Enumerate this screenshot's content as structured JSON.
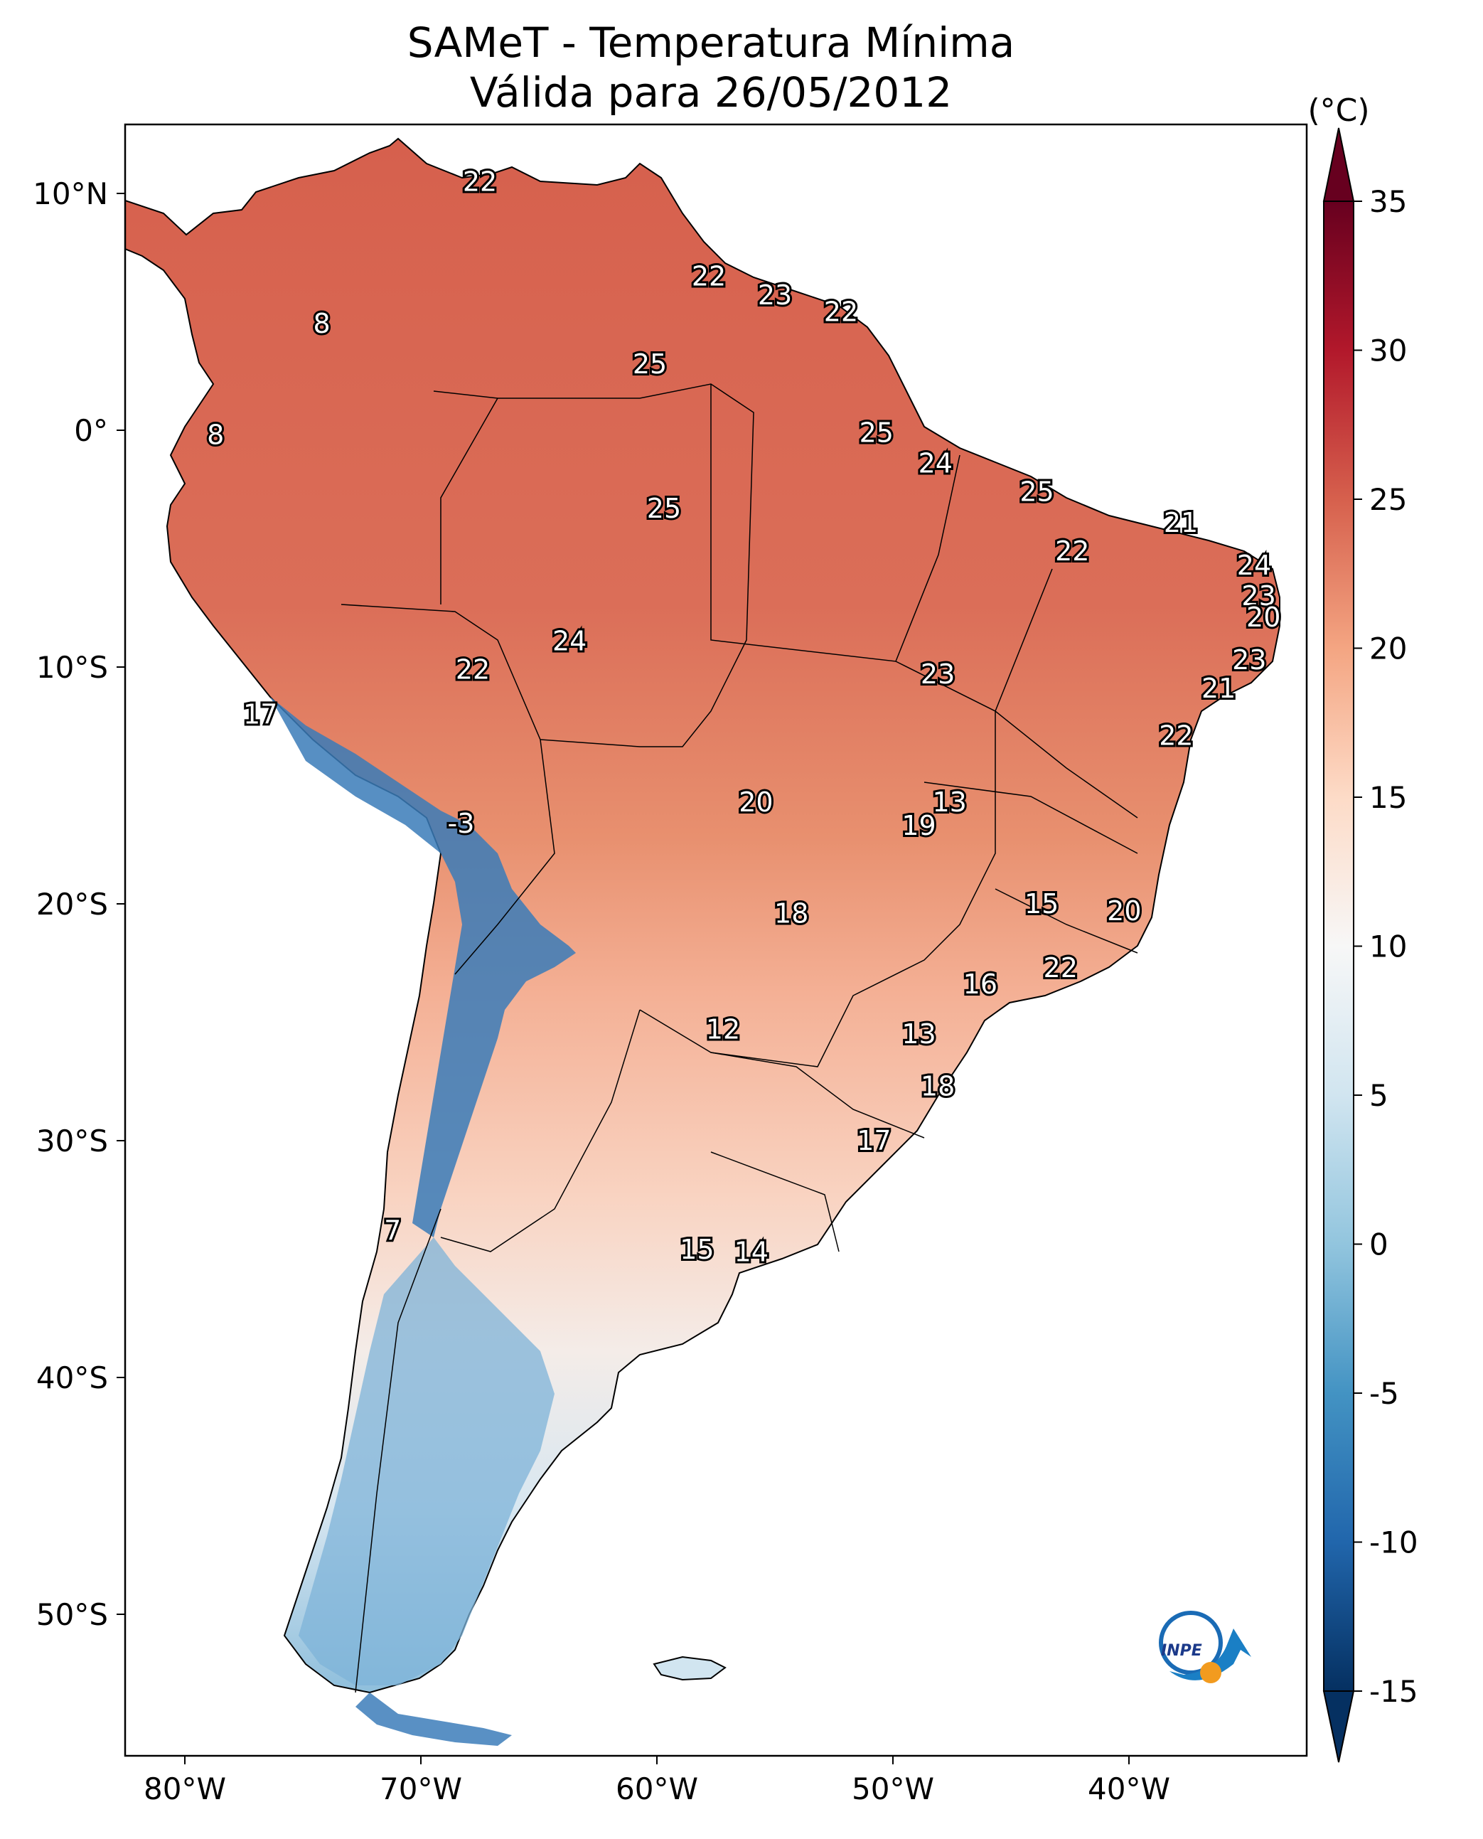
{
  "title": {
    "line1": "SAMeT - Temperatura Mínima",
    "line2": "Válida para 26/05/2012"
  },
  "axes": {
    "lat_ticks": [
      "10°N",
      "0°",
      "10°S",
      "20°S",
      "30°S",
      "40°S",
      "50°S"
    ],
    "lon_ticks": [
      "80°W",
      "70°W",
      "60°W",
      "50°W",
      "40°W"
    ]
  },
  "colorbar": {
    "unit": "(°C)",
    "ticks": [
      "35",
      "30",
      "25",
      "20",
      "15",
      "10",
      "5",
      "0",
      "-5",
      "-10",
      "-15"
    ],
    "range": [
      -15,
      35
    ],
    "colormap": "RdBu_r",
    "extend": "both",
    "colors": [
      "#053061",
      "#2166ac",
      "#4393c3",
      "#92c5de",
      "#d1e5f0",
      "#f7f7f7",
      "#fddbc7",
      "#f4a582",
      "#d6604d",
      "#b2182b",
      "#67001f"
    ]
  },
  "map_labels": [
    {
      "text": "22",
      "lon": -67.5,
      "lat": 10.5
    },
    {
      "text": "8",
      "lon": -74.2,
      "lat": 4.5
    },
    {
      "text": "8",
      "lon": -78.7,
      "lat": -0.2
    },
    {
      "text": "22",
      "lon": -57.8,
      "lat": 6.5
    },
    {
      "text": "23",
      "lon": -55,
      "lat": 5.7
    },
    {
      "text": "22",
      "lon": -52.2,
      "lat": 5.0
    },
    {
      "text": "25",
      "lon": -60.3,
      "lat": 2.8
    },
    {
      "text": "25",
      "lon": -50.7,
      "lat": -0.1
    },
    {
      "text": "25",
      "lon": -59.7,
      "lat": -3.3
    },
    {
      "text": "24",
      "lon": -48.2,
      "lat": -1.4
    },
    {
      "text": "25",
      "lon": -43.9,
      "lat": -2.6
    },
    {
      "text": "21",
      "lon": -37.8,
      "lat": -3.9
    },
    {
      "text": "22",
      "lon": -42.4,
      "lat": -5.1
    },
    {
      "text": "24",
      "lon": -34.7,
      "lat": -5.7
    },
    {
      "text": "23",
      "lon": -34.5,
      "lat": -7.0
    },
    {
      "text": "20",
      "lon": -34.3,
      "lat": -7.9
    },
    {
      "text": "23",
      "lon": -34.9,
      "lat": -9.7
    },
    {
      "text": "21",
      "lon": -36.2,
      "lat": -10.9
    },
    {
      "text": "22",
      "lon": -38,
      "lat": -12.9
    },
    {
      "text": "24",
      "lon": -63.7,
      "lat": -8.9
    },
    {
      "text": "22",
      "lon": -67.8,
      "lat": -10.1
    },
    {
      "text": "23",
      "lon": -48.1,
      "lat": -10.3
    },
    {
      "text": "17",
      "lon": -76.8,
      "lat": -12.0
    },
    {
      "text": "20",
      "lon": -55.8,
      "lat": -15.7
    },
    {
      "text": "13",
      "lon": -47.6,
      "lat": -15.7
    },
    {
      "text": "19",
      "lon": -48.9,
      "lat": -16.7
    },
    {
      "text": "-3",
      "lon": -68.3,
      "lat": -16.6
    },
    {
      "text": "15",
      "lon": -43.7,
      "lat": -20.0
    },
    {
      "text": "18",
      "lon": -54.3,
      "lat": -20.4
    },
    {
      "text": "20",
      "lon": -40.2,
      "lat": -20.3
    },
    {
      "text": "22",
      "lon": -42.9,
      "lat": -22.7
    },
    {
      "text": "16",
      "lon": -46.3,
      "lat": -23.4
    },
    {
      "text": "12",
      "lon": -57.2,
      "lat": -25.3
    },
    {
      "text": "13",
      "lon": -48.9,
      "lat": -25.5
    },
    {
      "text": "18",
      "lon": -48.1,
      "lat": -27.7
    },
    {
      "text": "17",
      "lon": -50.8,
      "lat": -30.0
    },
    {
      "text": "7",
      "lon": -71.2,
      "lat": -33.8
    },
    {
      "text": "15",
      "lon": -58.3,
      "lat": -34.6
    },
    {
      "text": "14",
      "lon": -56.0,
      "lat": -34.7
    }
  ],
  "logo": {
    "text": "INPE",
    "icon": "inpe-logo-icon"
  }
}
